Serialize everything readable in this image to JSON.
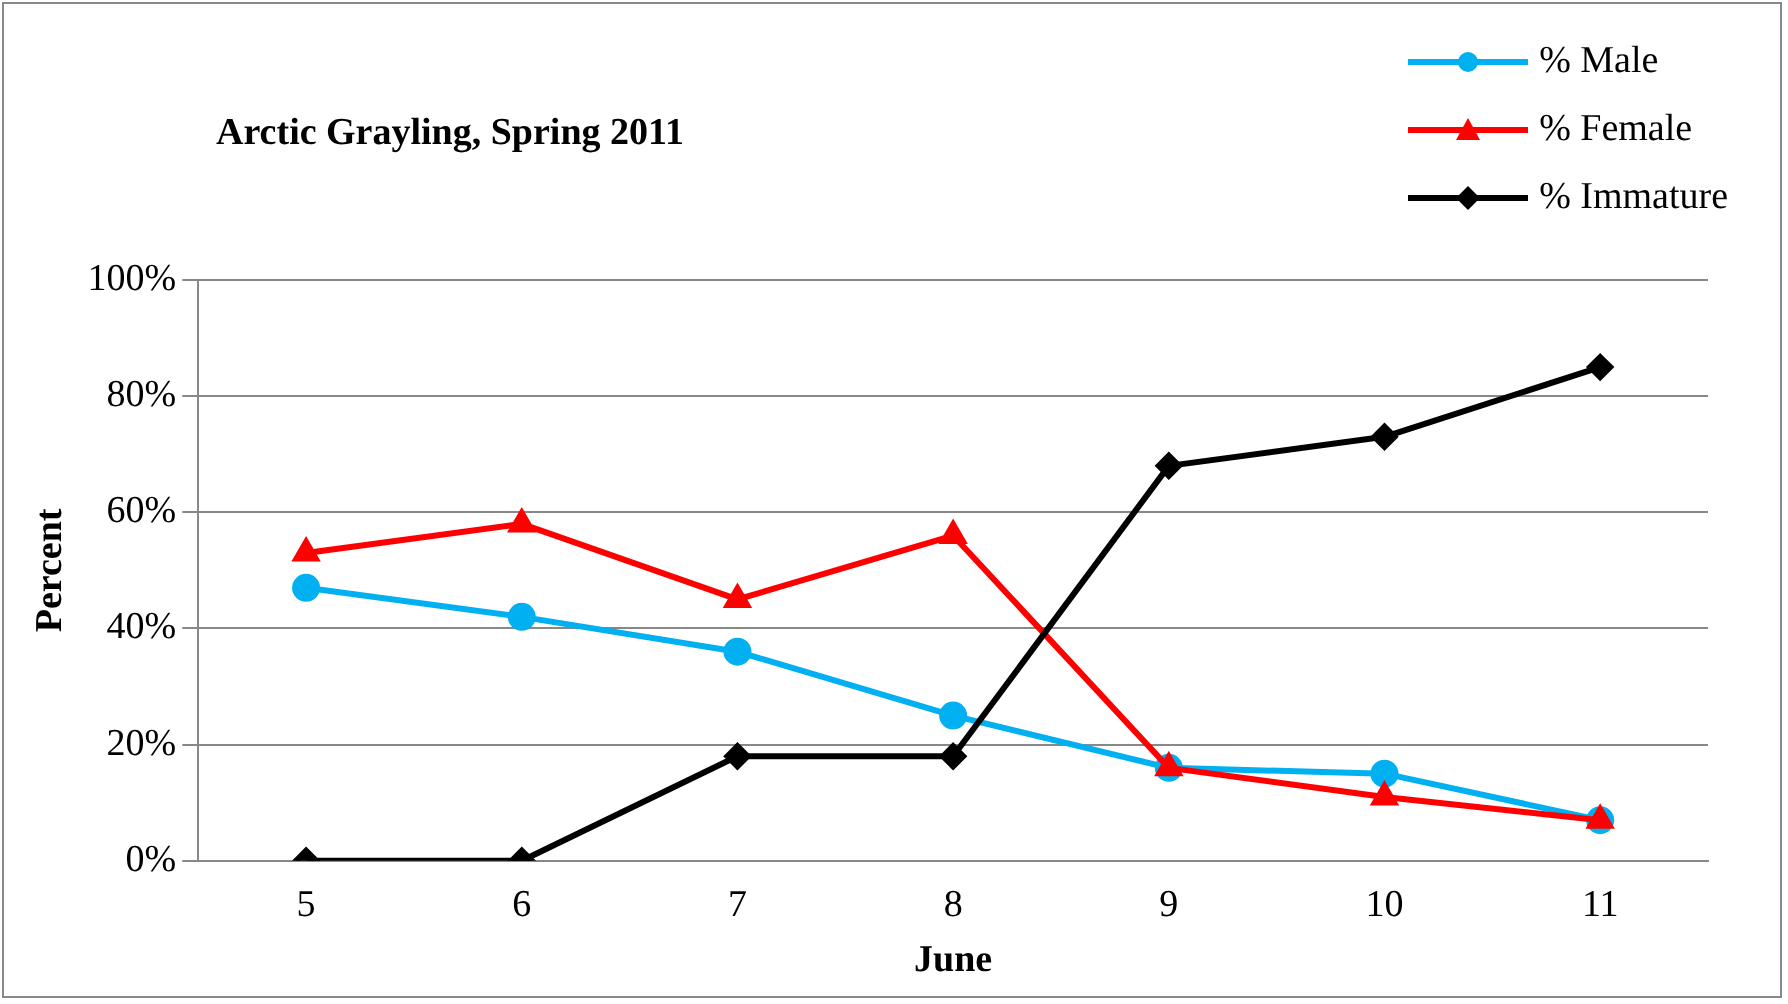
{
  "chart_data": {
    "type": "line",
    "title": "Arctic Grayling, Spring 2011",
    "xlabel": "June",
    "ylabel": "Percent",
    "categories": [
      "5",
      "6",
      "7",
      "8",
      "9",
      "10",
      "11"
    ],
    "series": [
      {
        "name": "% Male",
        "color": "#00b0f0",
        "marker": "circle",
        "values": [
          47,
          42,
          36,
          25,
          16,
          15,
          7
        ]
      },
      {
        "name": "% Female",
        "color": "#ff0000",
        "marker": "triangle",
        "values": [
          53,
          58,
          45,
          56,
          16,
          11,
          7
        ]
      },
      {
        "name": "% Immature",
        "color": "#000000",
        "marker": "diamond",
        "values": [
          0,
          0,
          18,
          18,
          68,
          73,
          85
        ]
      }
    ],
    "ylim": [
      0,
      100
    ],
    "yticks": [
      {
        "value": 0,
        "label": "0%"
      },
      {
        "value": 20,
        "label": "20%"
      },
      {
        "value": 40,
        "label": "40%"
      },
      {
        "value": 60,
        "label": "60%"
      },
      {
        "value": 80,
        "label": "80%"
      },
      {
        "value": 100,
        "label": "100%"
      }
    ],
    "grid": "y",
    "legend": "top right"
  }
}
